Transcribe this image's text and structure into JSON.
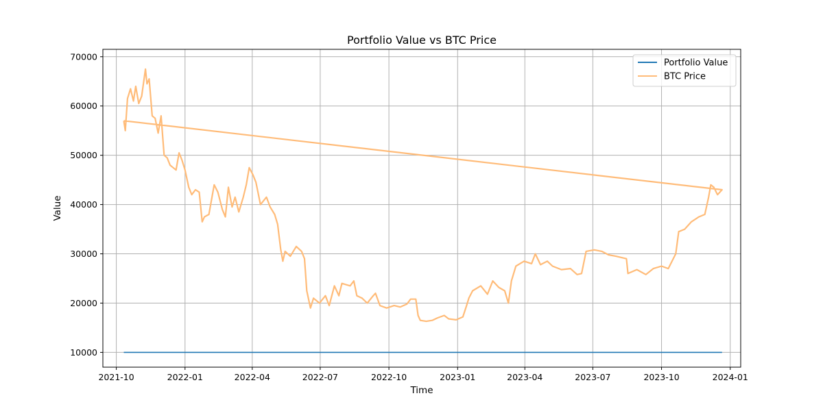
{
  "chart_data": {
    "type": "line",
    "title": "Portfolio Value vs BTC Price",
    "xlabel": "Time",
    "ylabel": "Value",
    "xlim": [
      "2021-09-13",
      "2024-01-15"
    ],
    "ylim": [
      7000,
      71500
    ],
    "x_ticks": [
      "2021-10",
      "2022-01",
      "2022-04",
      "2022-07",
      "2022-10",
      "2023-01",
      "2023-04",
      "2023-07",
      "2023-10",
      "2024-01"
    ],
    "y_ticks": [
      10000,
      20000,
      30000,
      40000,
      50000,
      60000,
      70000
    ],
    "grid": true,
    "legend": {
      "placement": "top-right",
      "entries": [
        "Portfolio Value",
        "BTC Price"
      ]
    },
    "series": [
      {
        "name": "Portfolio Value",
        "color": "#1f77b4",
        "opacity": 1,
        "points": [
          [
            "2021-10-11",
            10000
          ],
          [
            "2023-12-21",
            10000
          ]
        ]
      },
      {
        "name": "BTC Price",
        "color": "#ffbb78",
        "opacity": 1,
        "points": [
          [
            "2021-10-11",
            57000
          ],
          [
            "2021-10-13",
            55000
          ],
          [
            "2021-10-16",
            61500
          ],
          [
            "2021-10-20",
            63500
          ],
          [
            "2021-10-24",
            61000
          ],
          [
            "2021-10-27",
            64000
          ],
          [
            "2021-10-31",
            60500
          ],
          [
            "2021-11-04",
            62000
          ],
          [
            "2021-11-09",
            67500
          ],
          [
            "2021-11-11",
            64500
          ],
          [
            "2021-11-14",
            65500
          ],
          [
            "2021-11-18",
            58000
          ],
          [
            "2021-11-22",
            57500
          ],
          [
            "2021-11-26",
            54500
          ],
          [
            "2021-11-30",
            58000
          ],
          [
            "2021-12-04",
            50000
          ],
          [
            "2021-12-08",
            49500
          ],
          [
            "2021-12-12",
            48000
          ],
          [
            "2021-12-16",
            47500
          ],
          [
            "2021-12-20",
            47000
          ],
          [
            "2021-12-24",
            50500
          ],
          [
            "2021-12-28",
            49000
          ],
          [
            "2022-01-01",
            47000
          ],
          [
            "2022-01-06",
            43500
          ],
          [
            "2022-01-10",
            42000
          ],
          [
            "2022-01-15",
            43000
          ],
          [
            "2022-01-20",
            42500
          ],
          [
            "2022-01-24",
            36500
          ],
          [
            "2022-01-27",
            37500
          ],
          [
            "2022-02-02",
            38000
          ],
          [
            "2022-02-09",
            44000
          ],
          [
            "2022-02-14",
            42500
          ],
          [
            "2022-02-20",
            39000
          ],
          [
            "2022-02-24",
            37500
          ],
          [
            "2022-02-28",
            43500
          ],
          [
            "2022-03-05",
            39500
          ],
          [
            "2022-03-09",
            41500
          ],
          [
            "2022-03-14",
            38500
          ],
          [
            "2022-03-20",
            41500
          ],
          [
            "2022-03-24",
            44000
          ],
          [
            "2022-03-28",
            47500
          ],
          [
            "2022-04-02",
            46000
          ],
          [
            "2022-04-06",
            44500
          ],
          [
            "2022-04-12",
            40000
          ],
          [
            "2022-04-20",
            41500
          ],
          [
            "2022-04-25",
            39500
          ],
          [
            "2022-05-01",
            38000
          ],
          [
            "2022-05-05",
            36000
          ],
          [
            "2022-05-09",
            31000
          ],
          [
            "2022-05-12",
            28500
          ],
          [
            "2022-05-15",
            30500
          ],
          [
            "2022-05-22",
            29500
          ],
          [
            "2022-05-30",
            31500
          ],
          [
            "2022-06-06",
            30500
          ],
          [
            "2022-06-10",
            29000
          ],
          [
            "2022-06-13",
            22500
          ],
          [
            "2022-06-18",
            19000
          ],
          [
            "2022-06-22",
            21000
          ],
          [
            "2022-06-30",
            20000
          ],
          [
            "2022-07-08",
            21500
          ],
          [
            "2022-07-13",
            19500
          ],
          [
            "2022-07-20",
            23500
          ],
          [
            "2022-07-26",
            21500
          ],
          [
            "2022-07-30",
            24000
          ],
          [
            "2022-08-10",
            23500
          ],
          [
            "2022-08-15",
            24500
          ],
          [
            "2022-08-19",
            21500
          ],
          [
            "2022-08-26",
            21000
          ],
          [
            "2022-09-02",
            20000
          ],
          [
            "2022-09-10",
            21500
          ],
          [
            "2022-09-13",
            22000
          ],
          [
            "2022-09-19",
            19500
          ],
          [
            "2022-09-28",
            19000
          ],
          [
            "2022-10-08",
            19500
          ],
          [
            "2022-10-16",
            19200
          ],
          [
            "2022-10-25",
            19800
          ],
          [
            "2022-10-30",
            20800
          ],
          [
            "2022-11-06",
            20800
          ],
          [
            "2022-11-09",
            17500
          ],
          [
            "2022-11-12",
            16500
          ],
          [
            "2022-11-20",
            16300
          ],
          [
            "2022-11-28",
            16500
          ],
          [
            "2022-12-05",
            17000
          ],
          [
            "2022-12-14",
            17500
          ],
          [
            "2022-12-20",
            16800
          ],
          [
            "2022-12-30",
            16600
          ],
          [
            "2023-01-08",
            17200
          ],
          [
            "2023-01-13",
            19500
          ],
          [
            "2023-01-16",
            21000
          ],
          [
            "2023-01-21",
            22500
          ],
          [
            "2023-02-01",
            23500
          ],
          [
            "2023-02-10",
            21800
          ],
          [
            "2023-02-17",
            24500
          ],
          [
            "2023-02-25",
            23200
          ],
          [
            "2023-03-05",
            22500
          ],
          [
            "2023-03-10",
            20000
          ],
          [
            "2023-03-14",
            24500
          ],
          [
            "2023-03-20",
            27500
          ],
          [
            "2023-03-31",
            28500
          ],
          [
            "2023-04-10",
            28000
          ],
          [
            "2023-04-15",
            30000
          ],
          [
            "2023-04-22",
            27800
          ],
          [
            "2023-05-01",
            28500
          ],
          [
            "2023-05-08",
            27500
          ],
          [
            "2023-05-20",
            26800
          ],
          [
            "2023-06-01",
            27000
          ],
          [
            "2023-06-10",
            25800
          ],
          [
            "2023-06-16",
            26000
          ],
          [
            "2023-06-22",
            30500
          ],
          [
            "2023-07-03",
            30800
          ],
          [
            "2023-07-13",
            30500
          ],
          [
            "2023-07-22",
            29800
          ],
          [
            "2023-08-01",
            29500
          ],
          [
            "2023-08-15",
            29000
          ],
          [
            "2023-08-17",
            26000
          ],
          [
            "2023-08-29",
            26800
          ],
          [
            "2023-09-10",
            25800
          ],
          [
            "2023-09-20",
            27000
          ],
          [
            "2023-10-01",
            27500
          ],
          [
            "2023-10-10",
            27000
          ],
          [
            "2023-10-20",
            30000
          ],
          [
            "2023-10-24",
            34500
          ],
          [
            "2023-11-01",
            35000
          ],
          [
            "2023-11-10",
            36500
          ],
          [
            "2023-11-20",
            37500
          ],
          [
            "2023-11-28",
            38000
          ],
          [
            "2023-12-03",
            41500
          ],
          [
            "2023-12-06",
            44000
          ],
          [
            "2023-12-10",
            43500
          ],
          [
            "2023-12-15",
            42000
          ],
          [
            "2023-12-21",
            43000
          ],
          [
            "2021-10-11",
            57000
          ]
        ]
      }
    ]
  }
}
